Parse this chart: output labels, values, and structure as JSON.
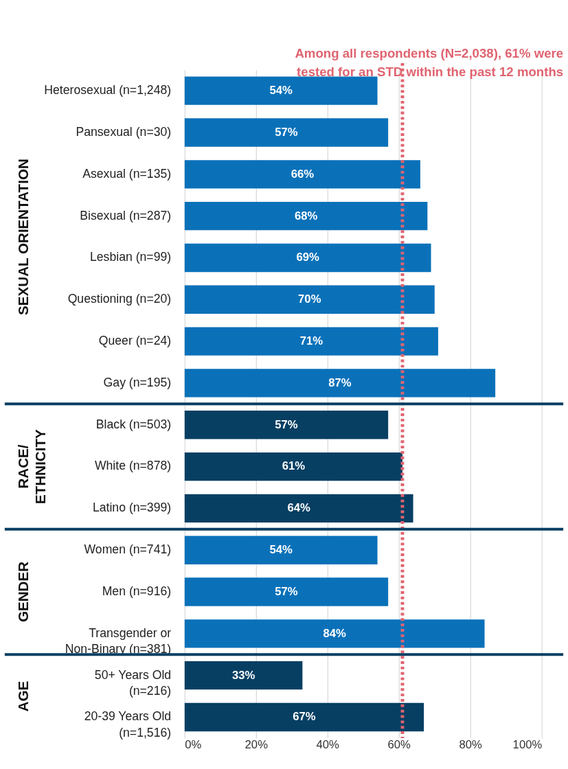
{
  "chart_data": {
    "type": "bar",
    "orientation": "horizontal",
    "categories": [
      "Heterosexual (n=1,248)",
      "Pansexual (n=30)",
      "Asexual (n=135)",
      "Bisexual (n=287)",
      "Lesbian (n=99)",
      "Questioning (n=20)",
      "Queer (n=24)",
      "Gay (n=195)",
      "Black (n=503)",
      "White (n=878)",
      "Latino (n=399)",
      "Women (n=741)",
      "Men (n=916)",
      "Transgender or\nNon-Binary (n=381)",
      "50+ Years Old\n(n=216)",
      "20-39 Years Old\n(n=1,516)"
    ],
    "values": [
      54,
      57,
      66,
      68,
      69,
      70,
      71,
      87,
      57,
      61,
      64,
      54,
      57,
      84,
      33,
      67
    ],
    "colors": [
      "#0a71b9",
      "#0a71b9",
      "#0a71b9",
      "#0a71b9",
      "#0a71b9",
      "#0a71b9",
      "#0a71b9",
      "#0a71b9",
      "#073f63",
      "#073f63",
      "#073f63",
      "#0a71b9",
      "#0a71b9",
      "#0a71b9",
      "#073f63",
      "#073f63"
    ],
    "value_labels": [
      "54%",
      "57%",
      "66%",
      "68%",
      "69%",
      "70%",
      "71%",
      "87%",
      "57%",
      "61%",
      "64%",
      "54%",
      "57%",
      "84%",
      "33%",
      "67%"
    ],
    "xlim": [
      0,
      100
    ],
    "xticks": [
      {
        "value": 0,
        "label": "0%"
      },
      {
        "value": 20,
        "label": "20%"
      },
      {
        "value": 40,
        "label": "40%"
      },
      {
        "value": 60,
        "label": "60%"
      },
      {
        "value": 80,
        "label": "80%"
      },
      {
        "value": 100,
        "label": "100%"
      }
    ],
    "grid": "x",
    "ref_lines": [
      {
        "axis": "x",
        "value": 61,
        "label": "Among all respondents (N=2,038), 61% were\ntested for an STD within the past 12 months",
        "color": "#e06470",
        "line_style": "dotted"
      }
    ],
    "annotations": [
      "SEXUAL ORIENTATION",
      "RACE/\nETHNICITY",
      "GENDER",
      "AGE"
    ]
  }
}
